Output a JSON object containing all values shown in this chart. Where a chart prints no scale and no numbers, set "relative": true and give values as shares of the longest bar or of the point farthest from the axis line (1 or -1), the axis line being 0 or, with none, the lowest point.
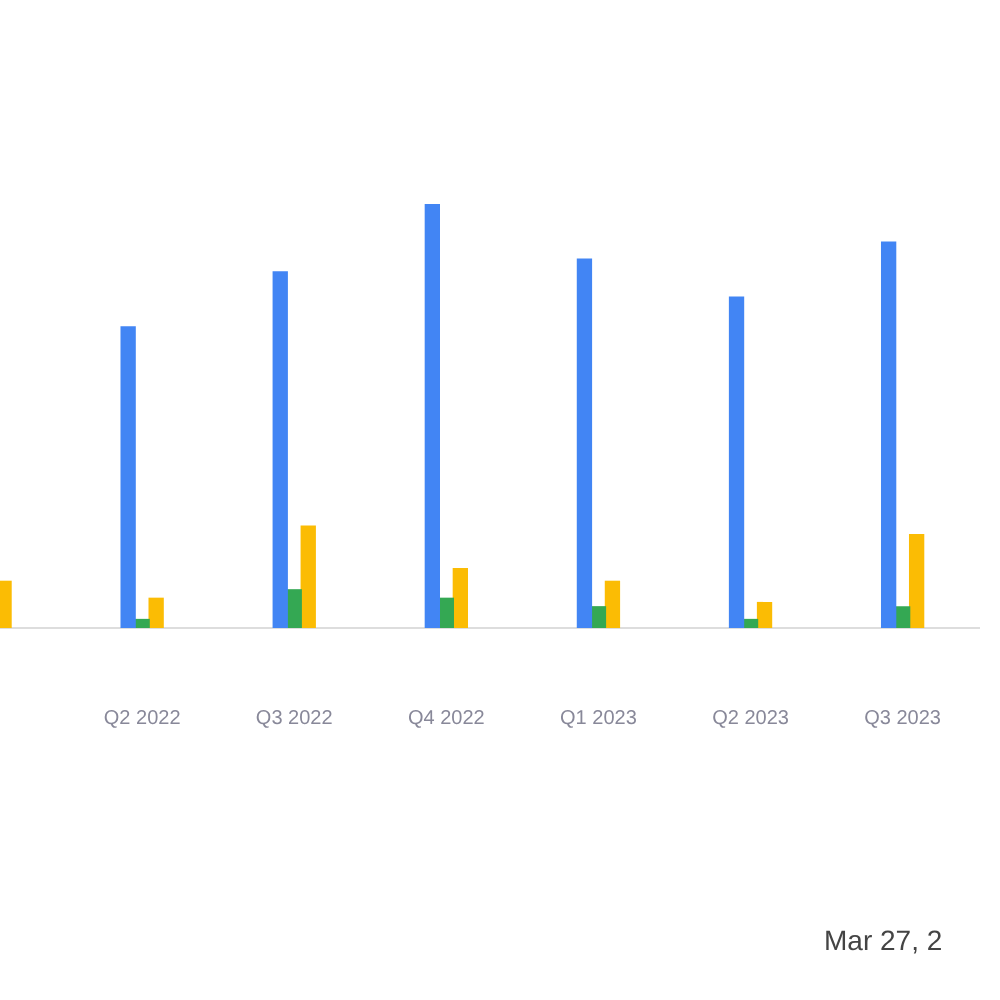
{
  "chart_data": {
    "type": "bar",
    "relative": true,
    "categories": [
      null,
      "Q2 2022",
      "Q3 2022",
      "Q4 2022",
      "Q1 2023",
      "Q2 2023",
      "Q3 2023"
    ],
    "series": [
      {
        "color": "#4285f4",
        "values": [
          null,
          0.71,
          0.84,
          1,
          0.87,
          0.78,
          0.91
        ]
      },
      {
        "color": "#34a853",
        "values": [
          null,
          0.02,
          0.09,
          0.07,
          0.05,
          0.02,
          0.05
        ]
      },
      {
        "color": "#fbbc04",
        "values": [
          0.11,
          0.07,
          0.24,
          0.14,
          0.11,
          0.06,
          0.22
        ]
      }
    ],
    "annotations": [
      "Mar 27, 2"
    ]
  }
}
